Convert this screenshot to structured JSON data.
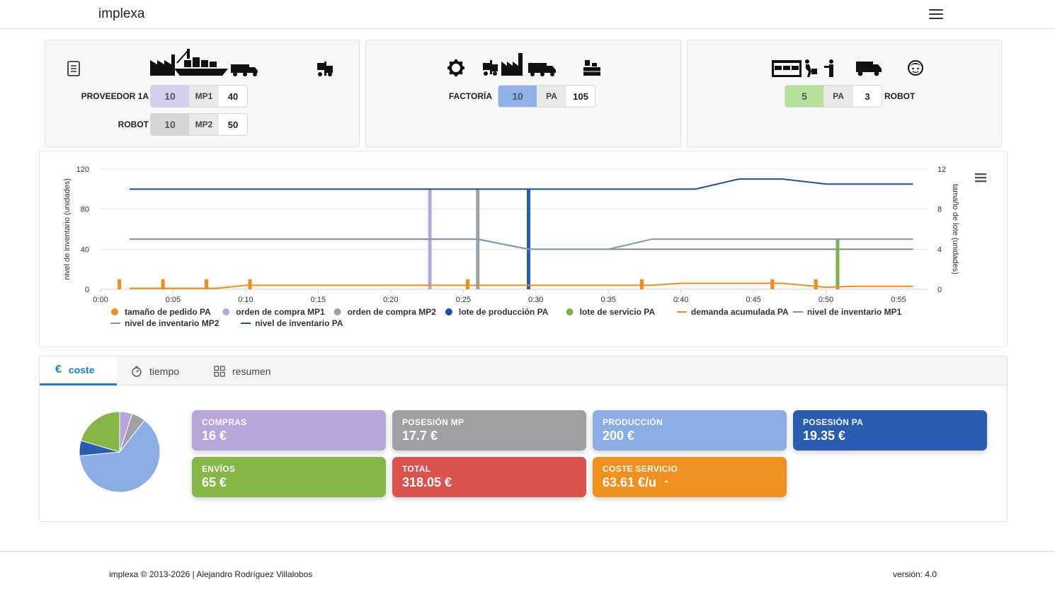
{
  "navbar": {
    "brand": "implexa",
    "menu_icon": "hamburger-icon"
  },
  "supplier_card": {
    "icons": [
      "list-icon",
      "factory-ship-truck-icon",
      "forklift-icon"
    ],
    "rows": [
      {
        "label": "PROVEEDOR 1A",
        "value": "10",
        "unit": "MP1",
        "amount": "40",
        "color": "#d9cdef"
      },
      {
        "label": "ROBOT",
        "value": "10",
        "unit": "MP2",
        "amount": "50",
        "color": "#d6d6d6"
      }
    ]
  },
  "factory_card": {
    "icons": [
      "gear-icon",
      "forklift-factory-truck-icon",
      "warehouse-boxes-icon"
    ],
    "label": "FACTORÍA",
    "value": "10",
    "unit": "PA",
    "amount": "105",
    "color": "#8db3e8"
  },
  "retail_card": {
    "icons": [
      "store-delivery-icon",
      "truck-icon",
      "customer-icon"
    ],
    "value": "5",
    "unit": "PA",
    "amount": "3",
    "label": "ROBOT",
    "color": "#b5e19a"
  },
  "chart_data": {
    "type": "line",
    "x_ticks": [
      "0:00",
      "0:05",
      "0:10",
      "0:15",
      "0:20",
      "0:25",
      "0:30",
      "0:35",
      "0:40",
      "0:45",
      "0:50",
      "0:55"
    ],
    "y_left": {
      "label": "nivel de inventario (unidades)",
      "ticks": [
        "120",
        "80",
        "40",
        "0"
      ],
      "range": [
        0,
        120
      ]
    },
    "y_right": {
      "label": "tamaño de lote (unidades)",
      "ticks": [
        "12",
        "8",
        "4",
        "0"
      ],
      "range": [
        0,
        12
      ]
    },
    "series": [
      {
        "name": "nivel de inventario PA",
        "color": "#1f4e9c",
        "kind": "line",
        "axis": "left",
        "points": [
          [
            2,
            100
          ],
          [
            41,
            100
          ],
          [
            44,
            110
          ],
          [
            47,
            110
          ],
          [
            50,
            105
          ],
          [
            56,
            105
          ]
        ]
      },
      {
        "name": "nivel de inventario MP1",
        "color": "#8a8a8a",
        "kind": "line",
        "axis": "left",
        "points": [
          [
            2,
            50
          ],
          [
            26,
            50
          ],
          [
            29.5,
            40
          ],
          [
            56,
            40
          ]
        ]
      },
      {
        "name": "nivel de inventario MP2",
        "color": "#7a9ab8",
        "kind": "line",
        "axis": "left",
        "points": [
          [
            2,
            50
          ],
          [
            26,
            50
          ],
          [
            29.5,
            40
          ],
          [
            35,
            40
          ],
          [
            38,
            50
          ],
          [
            56,
            50
          ]
        ]
      },
      {
        "name": "demanda acumulada PA",
        "color": "#f28c1e",
        "kind": "line",
        "axis": "left",
        "points": [
          [
            2,
            1
          ],
          [
            8,
            1
          ],
          [
            10,
            4
          ],
          [
            38,
            4
          ],
          [
            40,
            6
          ],
          [
            47,
            6
          ],
          [
            50,
            2
          ],
          [
            52,
            3
          ],
          [
            56,
            3
          ]
        ]
      },
      {
        "name": "tamaño de pedido PA",
        "color": "#f28c1e",
        "kind": "bar",
        "axis": "right",
        "points": [
          [
            1.3,
            1
          ],
          [
            4.3,
            1
          ],
          [
            7.3,
            1
          ],
          [
            10.3,
            1
          ],
          [
            25.3,
            1
          ],
          [
            37.3,
            1
          ],
          [
            46.3,
            1
          ],
          [
            49.3,
            1
          ]
        ]
      },
      {
        "name": "orden de compra MP1",
        "color": "#b9a7db",
        "kind": "bar",
        "axis": "right",
        "points": [
          [
            22.7,
            10
          ]
        ]
      },
      {
        "name": "orden de compra MP2",
        "color": "#9aa3ab",
        "kind": "bar",
        "axis": "right",
        "points": [
          [
            26,
            10
          ]
        ]
      },
      {
        "name": "lote de producción PA",
        "color": "#2a5db0",
        "kind": "bar",
        "axis": "right",
        "points": [
          [
            29.5,
            10
          ]
        ]
      },
      {
        "name": "lote de servicio PA",
        "color": "#7fb24a",
        "kind": "bar",
        "axis": "right",
        "points": [
          [
            50.8,
            5
          ]
        ]
      }
    ],
    "legend": [
      {
        "name": "tamaño de pedido PA",
        "marker": "dot",
        "color": "#f28c1e"
      },
      {
        "name": "orden de compra MP1",
        "marker": "dot",
        "color": "#b9a7db"
      },
      {
        "name": "orden de compra MP2",
        "marker": "dot",
        "color": "#9aa3ab"
      },
      {
        "name": "lote de producción PA",
        "marker": "dot",
        "color": "#1f4e9c"
      },
      {
        "name": "lote de servicio PA",
        "marker": "dot",
        "color": "#7fb24a"
      },
      {
        "name": "demanda acumulada PA",
        "marker": "line",
        "color": "#f28c1e"
      },
      {
        "name": "nivel de inventario MP1",
        "marker": "line",
        "color": "#8a8a8a"
      },
      {
        "name": "nivel de inventario MP2",
        "marker": "line",
        "color": "#7a9ab8"
      },
      {
        "name": "nivel de inventario PA",
        "marker": "line",
        "color": "#1f4e9c"
      }
    ],
    "legend_position": "bottom",
    "grid": true
  },
  "tabs": [
    {
      "label": "coste",
      "icon": "euro-icon",
      "active": true
    },
    {
      "label": "tiempo",
      "icon": "stopwatch-icon",
      "active": false
    },
    {
      "label": "resumen",
      "icon": "grid-icon",
      "active": false
    }
  ],
  "pie": {
    "slices": [
      {
        "name": "compras",
        "value": 16,
        "color": "#b7a6dc"
      },
      {
        "name": "posesión MP",
        "value": 17.7,
        "color": "#a0a0a8"
      },
      {
        "name": "producción",
        "value": 200,
        "color": "#8aaee3"
      },
      {
        "name": "posesión PA",
        "value": 19.35,
        "color": "#2a5db0"
      },
      {
        "name": "envíos",
        "value": 65,
        "color": "#86b54a"
      }
    ]
  },
  "tiles": [
    {
      "label": "COMPRAS",
      "value": "16 €",
      "color": "#b7a6dc"
    },
    {
      "label": "POSESIÓN MP",
      "value": "17.7 €",
      "color": "#a19fa6"
    },
    {
      "label": "PRODUCCIÓN",
      "value": "200 €",
      "color": "#8aaee3"
    },
    {
      "label": "POSESIÓN PA",
      "value": "19.35 €",
      "color": "#2a5db0"
    },
    {
      "label": "ENVÍOS",
      "value": "65 €",
      "color": "#86b54a"
    },
    {
      "label": "TOTAL",
      "value": "318.05 €",
      "color": "#d9534f"
    },
    {
      "label": "COSTE SERVICIO",
      "value": "63.61 €/u",
      "color": "#f2901f"
    }
  ],
  "footer": {
    "left": "implexa © 2013-2026 | Alejandro Rodríguez Villalobos",
    "right": "versión: 4.0"
  }
}
